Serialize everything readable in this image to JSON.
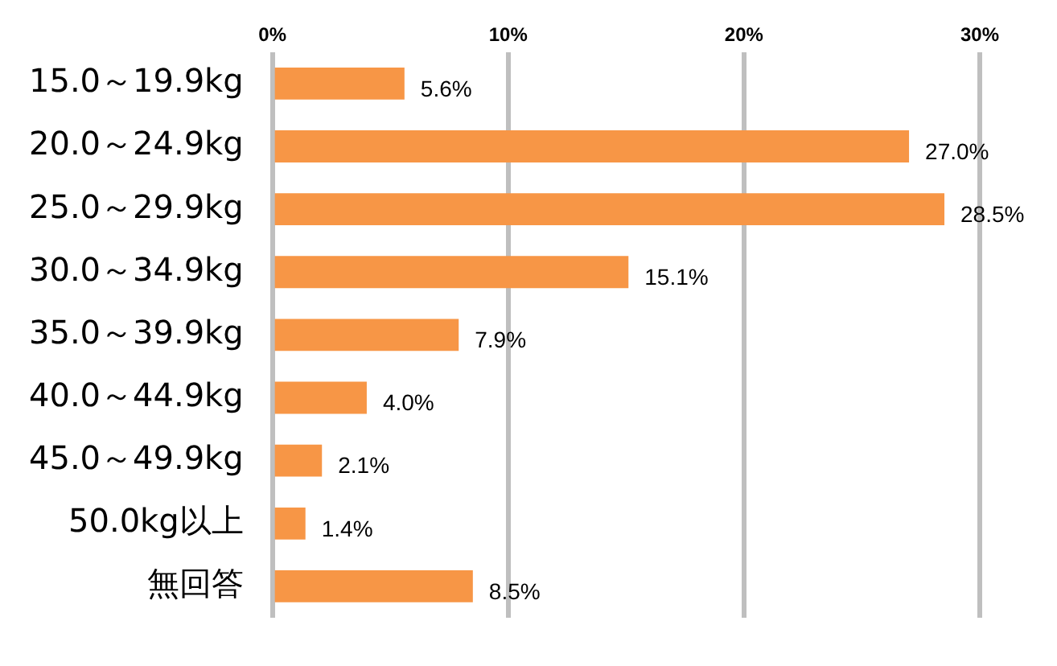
{
  "chart_data": {
    "type": "bar",
    "orientation": "horizontal",
    "categories": [
      "15.0～19.9kg",
      "20.0～24.9kg",
      "25.0～29.9kg",
      "30.0～34.9kg",
      "35.0～39.9kg",
      "40.0～44.9kg",
      "45.0～49.9kg",
      "50.0kg以上",
      "無回答"
    ],
    "values": [
      5.6,
      27.0,
      28.5,
      15.1,
      7.9,
      4.0,
      2.1,
      1.4,
      8.5
    ],
    "value_labels": [
      "5.6%",
      "27.0%",
      "28.5%",
      "15.1%",
      "7.9%",
      "4.0%",
      "2.1%",
      "1.4%",
      "8.5%"
    ],
    "color": "#f79646",
    "xlim": [
      0,
      30
    ],
    "xticks": [
      {
        "value": 0,
        "label": "0%"
      },
      {
        "value": 10,
        "label": "10%"
      },
      {
        "value": 20,
        "label": "20%"
      },
      {
        "value": 30,
        "label": "30%"
      }
    ],
    "grid": "x",
    "legend": false
  }
}
